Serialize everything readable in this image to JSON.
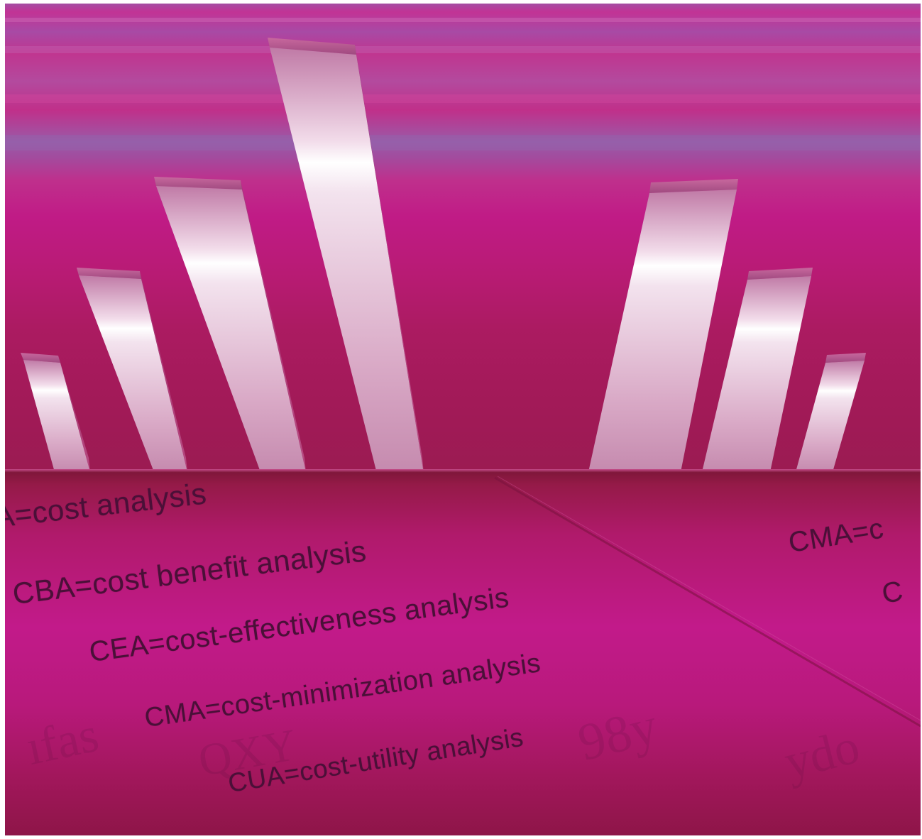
{
  "scene": {
    "palette": {
      "magenta": "#c01b86",
      "violet": "#9a5aa8",
      "crimson": "#9b1b52",
      "text": "#4a1038",
      "bar_highlight": "#ffffff",
      "bar_shade": "#b86a94"
    },
    "bars_icon": "glossy-3d-bar-icon"
  },
  "floor_text": {
    "lines": [
      {
        "text": "A=cost analysis"
      },
      {
        "text": "CBA=cost benefit analysis"
      },
      {
        "text": "CEA=cost-effectiveness analysis"
      },
      {
        "text": "CMA=cost-minimization analysis"
      },
      {
        "text": "CUA=cost-utility analysis"
      }
    ],
    "right_page": [
      {
        "text": "CMA=c"
      },
      {
        "text": "C"
      }
    ]
  }
}
